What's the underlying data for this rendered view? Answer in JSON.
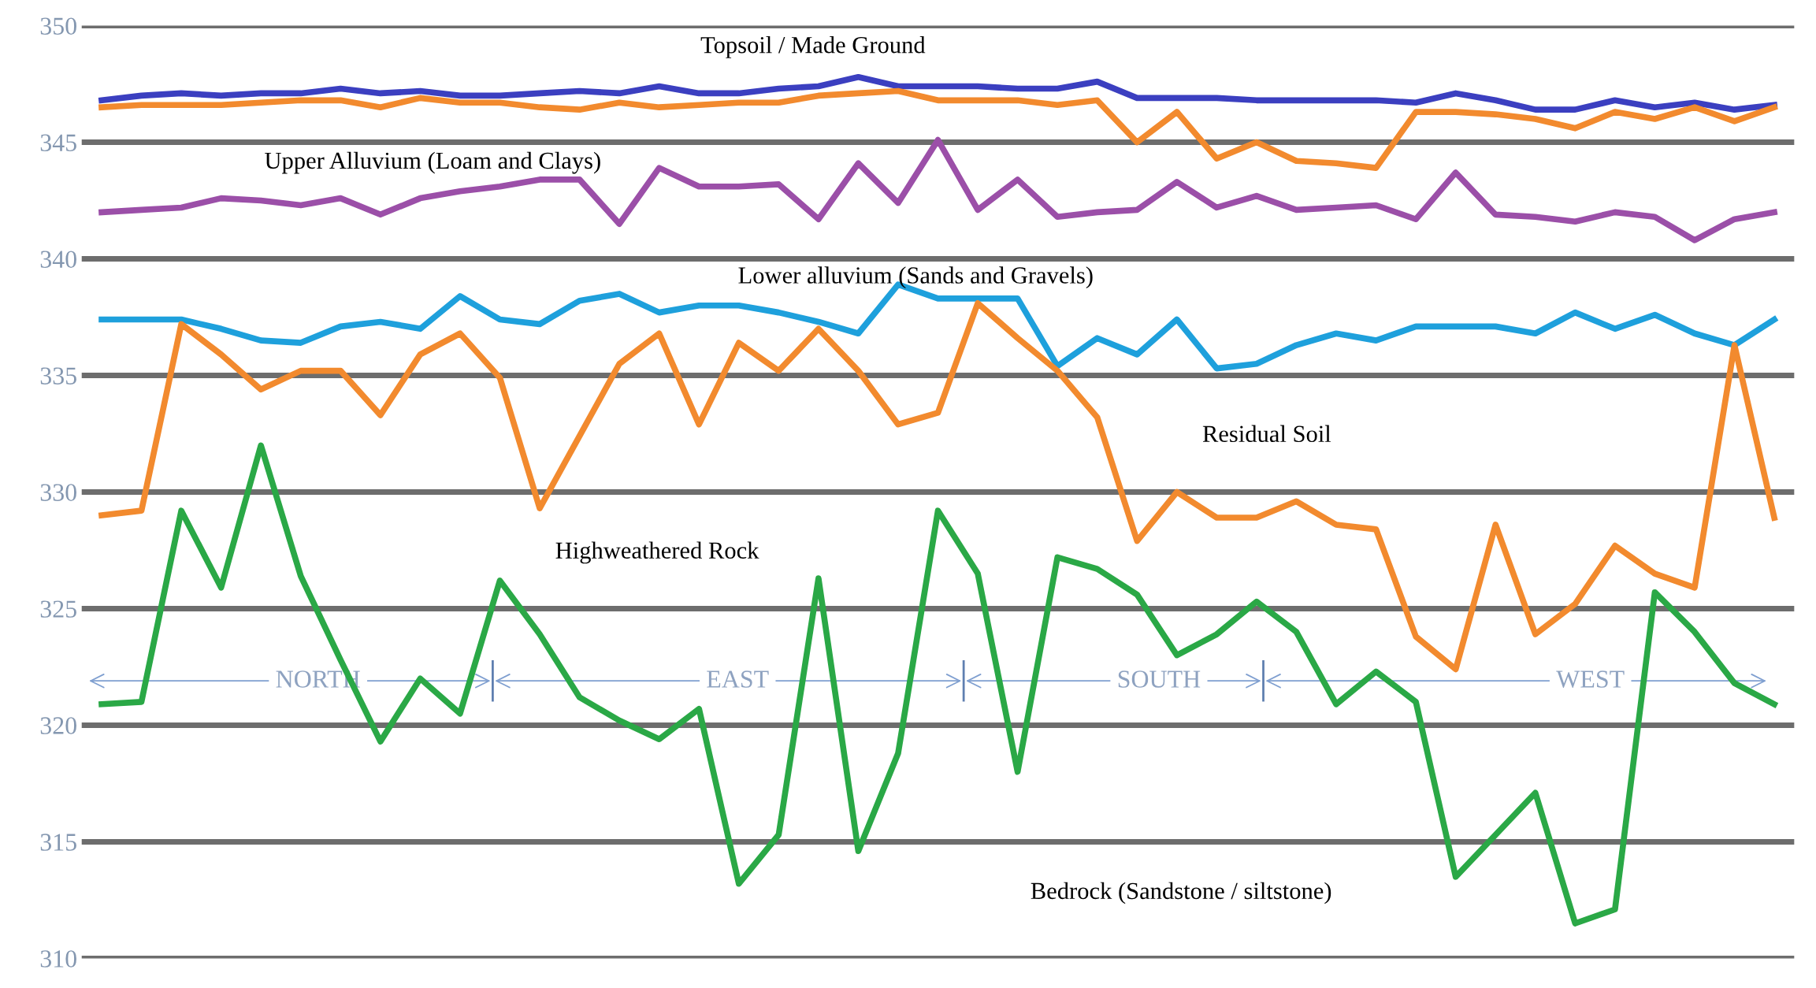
{
  "chart_data": {
    "type": "line",
    "categories": [
      null,
      null,
      null,
      null,
      null,
      null,
      null,
      null,
      null,
      null,
      null,
      null,
      null,
      null,
      null,
      null,
      null,
      null,
      null,
      null,
      null,
      null,
      null,
      null,
      null,
      null,
      null,
      null,
      null,
      null,
      null,
      null,
      null,
      null,
      null,
      null,
      null,
      null,
      null,
      null,
      null,
      null,
      null
    ],
    "series": [
      {
        "color": "#3b3fc0",
        "values": [
          346.8,
          347.0,
          347.1,
          347.0,
          347.1,
          347.1,
          347.3,
          347.1,
          347.2,
          347.0,
          347.0,
          347.1,
          347.2,
          347.1,
          347.4,
          347.1,
          347.1,
          347.3,
          347.4,
          347.8,
          347.4,
          347.4,
          347.4,
          347.3,
          347.3,
          347.6,
          346.9,
          346.9,
          346.9,
          346.8,
          346.8,
          346.8,
          346.8,
          346.7,
          347.1,
          346.8,
          346.4,
          346.4,
          346.8,
          346.5,
          346.7,
          346.4,
          346.6
        ]
      },
      {
        "color": "#f28a2e",
        "values": [
          346.5,
          346.6,
          346.6,
          346.6,
          346.7,
          346.8,
          346.8,
          346.5,
          346.9,
          346.7,
          346.7,
          346.5,
          346.4,
          346.7,
          346.5,
          346.6,
          346.7,
          346.7,
          347.0,
          347.1,
          347.2,
          346.8,
          346.8,
          346.8,
          346.6,
          346.8,
          345.0,
          346.3,
          344.3,
          345.0,
          344.2,
          344.1,
          343.9,
          346.3,
          346.3,
          346.2,
          346.0,
          345.6,
          346.3,
          346.0,
          346.5,
          345.9,
          346.5
        ]
      },
      {
        "color": "#9b4fa8",
        "values": [
          342.0,
          342.1,
          342.2,
          342.6,
          342.5,
          342.3,
          342.6,
          341.9,
          342.6,
          342.9,
          343.1,
          343.4,
          343.4,
          341.5,
          343.9,
          343.1,
          343.1,
          343.2,
          341.7,
          344.1,
          342.4,
          345.1,
          342.1,
          343.4,
          341.8,
          342.0,
          342.1,
          343.3,
          342.2,
          342.7,
          342.1,
          342.2,
          342.3,
          341.7,
          343.7,
          341.9,
          341.8,
          341.6,
          342.0,
          341.8,
          340.8,
          341.7,
          342.0
        ]
      },
      {
        "color": "#1ea0dc",
        "values": [
          337.4,
          337.4,
          337.4,
          337.0,
          336.5,
          336.4,
          337.1,
          337.3,
          337.0,
          338.4,
          337.4,
          337.2,
          338.2,
          338.5,
          337.7,
          338.0,
          338.0,
          337.7,
          337.3,
          336.8,
          338.9,
          338.3,
          338.3,
          338.3,
          335.4,
          336.6,
          335.9,
          337.4,
          335.3,
          335.5,
          336.3,
          336.8,
          336.5,
          337.1,
          337.1,
          337.1,
          336.8,
          337.7,
          337.0,
          337.6,
          336.8,
          336.3,
          337.4
        ]
      },
      {
        "color": "#f28a2e",
        "values": [
          329.0,
          329.2,
          337.2,
          335.9,
          334.4,
          335.2,
          335.2,
          333.3,
          335.9,
          336.8,
          334.9,
          329.3,
          332.4,
          335.5,
          336.8,
          332.9,
          336.4,
          335.2,
          337.0,
          335.2,
          332.9,
          333.4,
          338.1,
          336.6,
          335.2,
          333.2,
          327.9,
          330.0,
          328.9,
          328.9,
          329.6,
          328.6,
          328.4,
          323.8,
          322.4,
          328.6,
          323.9,
          325.2,
          327.7,
          326.5,
          325.9,
          336.3,
          328.9
        ]
      },
      {
        "color": "#2aa846",
        "values": [
          320.9,
          321.0,
          329.2,
          325.9,
          332.0,
          326.4,
          322.8,
          319.3,
          322.0,
          320.5,
          326.2,
          323.9,
          321.2,
          320.2,
          319.4,
          320.7,
          313.2,
          315.3,
          326.3,
          314.6,
          318.8,
          329.2,
          326.5,
          318.0,
          327.2,
          326.7,
          325.6,
          323.0,
          323.9,
          325.3,
          324.0,
          320.9,
          322.3,
          321.0,
          313.5,
          315.3,
          317.1,
          311.5,
          312.1,
          325.7,
          324.0,
          321.8,
          320.9
        ]
      }
    ],
    "ylim": [
      310,
      350
    ],
    "yticks": [
      310,
      315,
      320,
      325,
      330,
      335,
      340,
      345,
      350
    ],
    "grid": "y",
    "marker": "none",
    "line_style": "solid",
    "tick_labels": "y",
    "annotations": [
      "Topsoil / Made Ground",
      "Upper Alluvium (Loam and Clays)",
      "Lower alluvium (Sands and Gravels)",
      "Residual Soil",
      "Highweathered Rock",
      "Bedrock (Sandstone / siltstone)",
      "NORTH",
      "EAST",
      "SOUTH",
      "WEST"
    ]
  }
}
